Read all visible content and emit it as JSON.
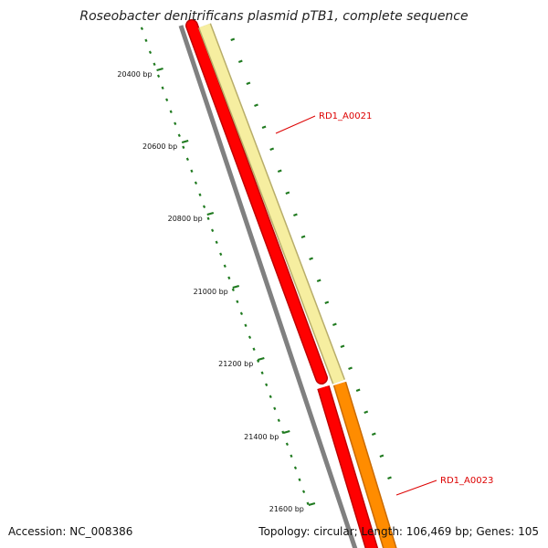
{
  "map": {
    "title": "Roseobacter denitrificans plasmid pTB1, complete sequence",
    "accession_text": "Accession: NC_008386",
    "summary_text": "Topology: circular; Length: 106,469 bp; Genes: 105"
  },
  "position_ticks": [
    {
      "label": "20400 bp"
    },
    {
      "label": "20600 bp"
    },
    {
      "label": "20800 bp"
    },
    {
      "label": "21000 bp"
    },
    {
      "label": "21200 bp"
    },
    {
      "label": "21400 bp"
    },
    {
      "label": "21600 bp"
    }
  ],
  "genes": [
    {
      "label": "RD1_A0021",
      "color": "#f6eea0"
    },
    {
      "label": "RD1_A0023",
      "color": "#ff8c00"
    }
  ],
  "colors": {
    "backbone": "#808080",
    "reverse_strand": "#ff0000",
    "ruler_ticks": "#1f7a1f",
    "gene_label_text": "#dd0000",
    "gene_label_line": "#dd0000",
    "orf_ticks": "#1f7a1f"
  }
}
